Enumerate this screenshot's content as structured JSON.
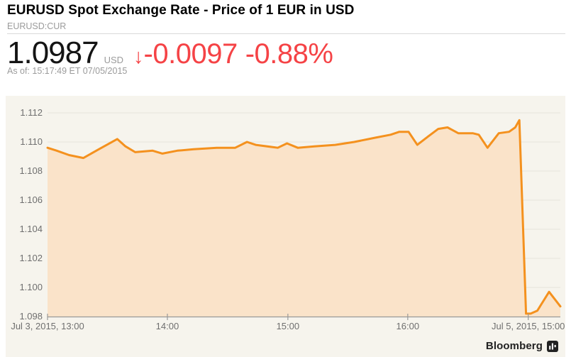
{
  "header": {
    "title": "EURUSD Spot Exchange Rate - Price of 1 EUR in USD",
    "ticker": "EURUSD:CUR",
    "price": "1.0987",
    "currency": "USD",
    "change_arrow": "↓",
    "change": "-0.0097",
    "change_percent": "-0.88%",
    "as_of": "As of: 15:17:49 ET 07/05/2015"
  },
  "footer": {
    "brand": "Bloomberg"
  },
  "colors": {
    "accent_red": "#f54346",
    "price_text": "#141414",
    "muted_text": "#9b9b9b"
  },
  "chart_data": {
    "type": "area",
    "title": "EURUSD Spot Exchange Rate - Price of 1 EUR in USD",
    "xlabel": "",
    "ylabel": "",
    "grid": true,
    "legend": "none",
    "ylim": [
      1.098,
      1.112
    ],
    "yticks": [
      {
        "value": 1.112,
        "label": "1.112"
      },
      {
        "value": 1.11,
        "label": "1.110"
      },
      {
        "value": 1.108,
        "label": "1.108"
      },
      {
        "value": 1.106,
        "label": "1.106"
      },
      {
        "value": 1.104,
        "label": "1.104"
      },
      {
        "value": 1.102,
        "label": "1.102"
      },
      {
        "value": 1.1,
        "label": "1.100"
      },
      {
        "value": 1.098,
        "label": "1.098"
      }
    ],
    "xticks": [
      {
        "pos": 0.0,
        "label": "Jul 3, 2015, 13:00"
      },
      {
        "pos": 0.2337,
        "label": "14:00"
      },
      {
        "pos": 0.4687,
        "label": "15:00"
      },
      {
        "pos": 0.7024,
        "label": "16:00"
      },
      {
        "pos": 0.9374,
        "label": "Jul 5, 2015, 15:00"
      }
    ],
    "series": [
      {
        "name": "EURUSD:CUR",
        "points": [
          [
            0.0,
            1.1096
          ],
          [
            0.018,
            1.1094
          ],
          [
            0.042,
            1.1091
          ],
          [
            0.07,
            1.1089
          ],
          [
            0.1,
            1.1095
          ],
          [
            0.136,
            1.1102
          ],
          [
            0.152,
            1.1097
          ],
          [
            0.171,
            1.1093
          ],
          [
            0.205,
            1.1094
          ],
          [
            0.224,
            1.1092
          ],
          [
            0.253,
            1.1094
          ],
          [
            0.285,
            1.1095
          ],
          [
            0.33,
            1.1096
          ],
          [
            0.366,
            1.1096
          ],
          [
            0.389,
            1.11
          ],
          [
            0.406,
            1.1098
          ],
          [
            0.449,
            1.1096
          ],
          [
            0.467,
            1.1099
          ],
          [
            0.488,
            1.1096
          ],
          [
            0.52,
            1.1097
          ],
          [
            0.561,
            1.1098
          ],
          [
            0.598,
            1.11
          ],
          [
            0.64,
            1.1103
          ],
          [
            0.669,
            1.1105
          ],
          [
            0.686,
            1.1107
          ],
          [
            0.704,
            1.1107
          ],
          [
            0.721,
            1.1098
          ],
          [
            0.743,
            1.1104
          ],
          [
            0.762,
            1.1109
          ],
          [
            0.78,
            1.111
          ],
          [
            0.801,
            1.1106
          ],
          [
            0.815,
            1.1106
          ],
          [
            0.829,
            1.1106
          ],
          [
            0.841,
            1.1105
          ],
          [
            0.858,
            1.1096
          ],
          [
            0.88,
            1.1106
          ],
          [
            0.9,
            1.1107
          ],
          [
            0.912,
            1.111
          ],
          [
            0.92,
            1.1115
          ],
          [
            0.933,
            1.0982
          ],
          [
            0.942,
            1.0982
          ],
          [
            0.955,
            1.0984
          ],
          [
            0.978,
            1.0997
          ],
          [
            1.0,
            1.0987
          ]
        ]
      }
    ],
    "colors": {
      "background": "#f6f4ed",
      "grid": "#e6e3db",
      "axis": "#999999",
      "line": "#f4911e",
      "fill": "#fae3c9",
      "tick_text": "#6f6f6f"
    }
  }
}
